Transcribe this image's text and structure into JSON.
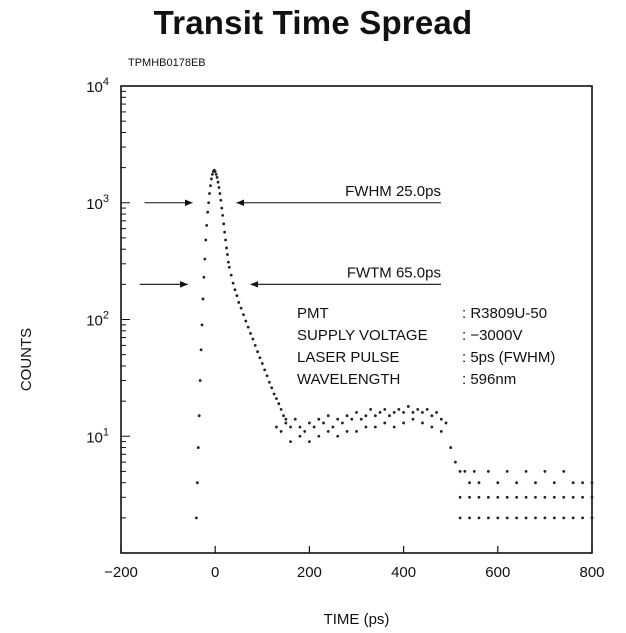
{
  "chart_data": {
    "type": "scatter",
    "title": "Transit Time Spread",
    "figure_code": "TPMHB0178EB",
    "xlabel": "TIME (ps)",
    "ylabel": "COUNTS",
    "xlim": [
      -200,
      800
    ],
    "ylim": [
      1,
      10000
    ],
    "y_scale": "log",
    "grid": false,
    "x_ticks": [
      -200,
      0,
      200,
      400,
      600,
      800
    ],
    "x_tick_labels": [
      "−200",
      "0",
      "200",
      "400",
      "600",
      "800"
    ],
    "y_ticks": [
      {
        "value": 10,
        "base": "10",
        "exp": "1"
      },
      {
        "value": 100,
        "base": "10",
        "exp": "2"
      },
      {
        "value": 1000,
        "base": "10",
        "exp": "3"
      },
      {
        "value": 10000,
        "base": "10",
        "exp": "4"
      }
    ],
    "annotations": [
      {
        "label": "FWHM 25.0ps",
        "left_x": -150,
        "right_x": 45,
        "level": 1000
      },
      {
        "label": "FWTM 65.0ps",
        "left_x": -160,
        "right_x": 75,
        "level": 200
      }
    ],
    "info_rows": [
      {
        "key": "PMT",
        "value": ": R3809U-50"
      },
      {
        "key": "SUPPLY VOLTAGE",
        "value": ": −3000V"
      },
      {
        "key": "LASER PULSE",
        "value": ": 5ps (FWHM)"
      },
      {
        "key": "WAVELENGTH",
        "value": ": 596nm"
      }
    ],
    "series": [
      {
        "points": [
          [
            -40,
            2
          ],
          [
            -38,
            4
          ],
          [
            -36,
            8
          ],
          [
            -34,
            15
          ],
          [
            -32,
            30
          ],
          [
            -30,
            55
          ],
          [
            -28,
            90
          ],
          [
            -26,
            150
          ],
          [
            -24,
            230
          ],
          [
            -22,
            330
          ],
          [
            -20,
            480
          ],
          [
            -18,
            640
          ],
          [
            -16,
            830
          ],
          [
            -14,
            1000
          ],
          [
            -12,
            1200
          ],
          [
            -10,
            1400
          ],
          [
            -8,
            1600
          ],
          [
            -6,
            1750
          ],
          [
            -4,
            1850
          ],
          [
            -2,
            1900
          ],
          [
            0,
            1850
          ],
          [
            2,
            1750
          ],
          [
            4,
            1650
          ],
          [
            6,
            1500
          ],
          [
            8,
            1350
          ],
          [
            10,
            1200
          ],
          [
            12,
            1050
          ],
          [
            14,
            900
          ],
          [
            16,
            780
          ],
          [
            18,
            660
          ],
          [
            20,
            560
          ],
          [
            22,
            480
          ],
          [
            24,
            410
          ],
          [
            26,
            360
          ],
          [
            28,
            310
          ],
          [
            30,
            280
          ],
          [
            34,
            240
          ],
          [
            38,
            205
          ],
          [
            42,
            180
          ],
          [
            46,
            160
          ],
          [
            50,
            140
          ],
          [
            55,
            125
          ],
          [
            60,
            110
          ],
          [
            65,
            97
          ],
          [
            70,
            86
          ],
          [
            75,
            76
          ],
          [
            80,
            68
          ],
          [
            85,
            60
          ],
          [
            90,
            53
          ],
          [
            95,
            47
          ],
          [
            100,
            42
          ],
          [
            105,
            37
          ],
          [
            110,
            33
          ],
          [
            115,
            29
          ],
          [
            120,
            26
          ],
          [
            125,
            23
          ],
          [
            130,
            21
          ],
          [
            135,
            19
          ],
          [
            140,
            17
          ],
          [
            145,
            15
          ],
          [
            150,
            14
          ],
          [
            130,
            12
          ],
          [
            140,
            11
          ],
          [
            150,
            13
          ],
          [
            160,
            12
          ],
          [
            170,
            14
          ],
          [
            180,
            12
          ],
          [
            190,
            11
          ],
          [
            200,
            13
          ],
          [
            210,
            12
          ],
          [
            220,
            14
          ],
          [
            230,
            13
          ],
          [
            240,
            15
          ],
          [
            250,
            12
          ],
          [
            260,
            14
          ],
          [
            270,
            13
          ],
          [
            280,
            15
          ],
          [
            290,
            14
          ],
          [
            300,
            16
          ],
          [
            310,
            14
          ],
          [
            320,
            15
          ],
          [
            330,
            17
          ],
          [
            340,
            15
          ],
          [
            350,
            16
          ],
          [
            360,
            17
          ],
          [
            370,
            15
          ],
          [
            380,
            16
          ],
          [
            390,
            17
          ],
          [
            400,
            16
          ],
          [
            410,
            18
          ],
          [
            420,
            16
          ],
          [
            430,
            17
          ],
          [
            440,
            16
          ],
          [
            450,
            17
          ],
          [
            460,
            15
          ],
          [
            470,
            16
          ],
          [
            480,
            14
          ],
          [
            490,
            13
          ],
          [
            160,
            9
          ],
          [
            180,
            10
          ],
          [
            200,
            9
          ],
          [
            220,
            10
          ],
          [
            240,
            11
          ],
          [
            260,
            10
          ],
          [
            280,
            11
          ],
          [
            300,
            11
          ],
          [
            320,
            12
          ],
          [
            340,
            12
          ],
          [
            360,
            13
          ],
          [
            380,
            12
          ],
          [
            400,
            13
          ],
          [
            420,
            14
          ],
          [
            440,
            13
          ],
          [
            460,
            12
          ],
          [
            480,
            11
          ],
          [
            500,
            8
          ],
          [
            510,
            6
          ],
          [
            520,
            5
          ],
          [
            530,
            5
          ],
          [
            540,
            4
          ],
          [
            550,
            5
          ],
          [
            560,
            4
          ],
          [
            580,
            5
          ],
          [
            600,
            4
          ],
          [
            620,
            5
          ],
          [
            640,
            4
          ],
          [
            660,
            5
          ],
          [
            680,
            4
          ],
          [
            700,
            5
          ],
          [
            720,
            4
          ],
          [
            740,
            5
          ],
          [
            760,
            4
          ],
          [
            780,
            4
          ],
          [
            800,
            4
          ],
          [
            520,
            3
          ],
          [
            540,
            3
          ],
          [
            560,
            3
          ],
          [
            580,
            3
          ],
          [
            600,
            3
          ],
          [
            620,
            3
          ],
          [
            640,
            3
          ],
          [
            660,
            3
          ],
          [
            680,
            3
          ],
          [
            700,
            3
          ],
          [
            720,
            3
          ],
          [
            740,
            3
          ],
          [
            760,
            3
          ],
          [
            780,
            3
          ],
          [
            800,
            3
          ],
          [
            520,
            2
          ],
          [
            540,
            2
          ],
          [
            560,
            2
          ],
          [
            580,
            2
          ],
          [
            600,
            2
          ],
          [
            620,
            2
          ],
          [
            640,
            2
          ],
          [
            660,
            2
          ],
          [
            680,
            2
          ],
          [
            700,
            2
          ],
          [
            720,
            2
          ],
          [
            740,
            2
          ],
          [
            760,
            2
          ],
          [
            780,
            2
          ],
          [
            800,
            2
          ]
        ]
      }
    ]
  }
}
